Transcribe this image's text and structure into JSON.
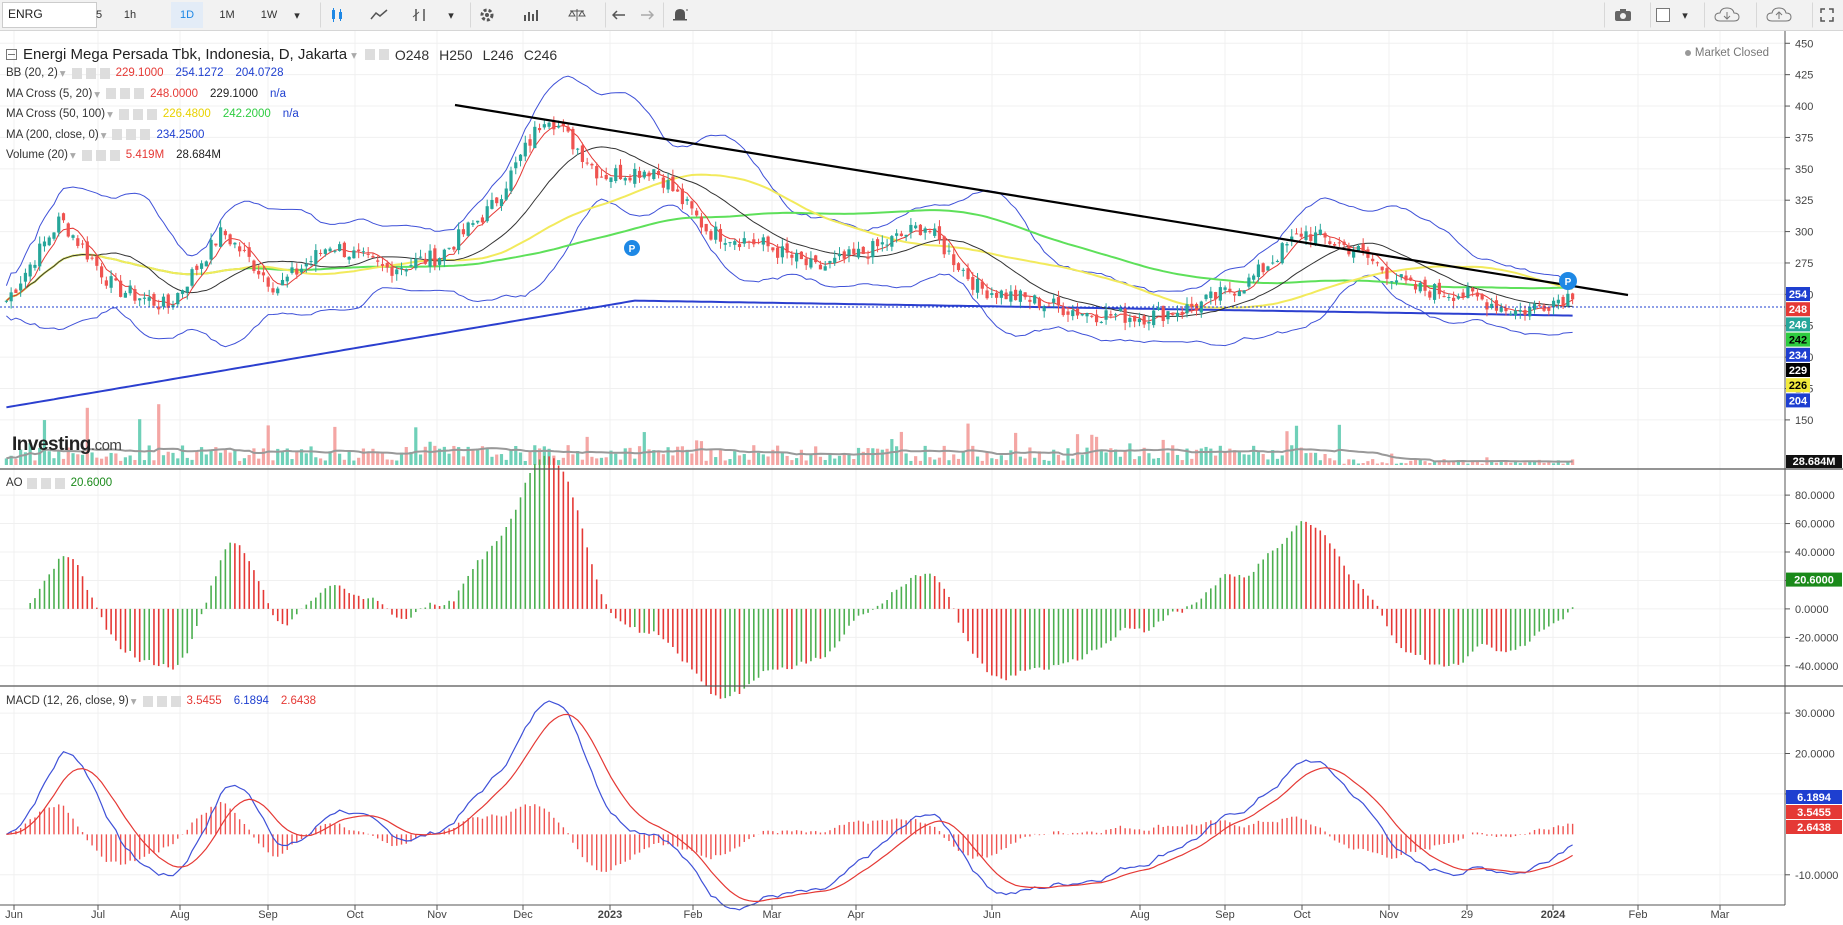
{
  "toolbar": {
    "symbol": "ENRG",
    "intervals": [
      "5",
      "1h",
      "1D",
      "1M",
      "1W"
    ],
    "active_interval": "1D"
  },
  "header": {
    "title": "Energi Mega Persada Tbk, Indonesia, D, Jakarta",
    "ohlc": [
      "O248",
      "H250",
      "L246",
      "C246"
    ],
    "market_status": "Market Closed"
  },
  "indicators": [
    {
      "name": "BB (20, 2)",
      "values": [
        "229.1000",
        "254.1272",
        "204.0728"
      ],
      "colors": [
        "#e53935",
        "#1e3fd0",
        "#1e3fd0"
      ]
    },
    {
      "name": "MA Cross (5, 20)",
      "values": [
        "248.0000",
        "229.1000",
        "n/a"
      ],
      "colors": [
        "#e53935",
        "#222222",
        "#1e3fd0"
      ]
    },
    {
      "name": "MA Cross (50, 100)",
      "values": [
        "226.4800",
        "242.2000",
        "n/a"
      ],
      "colors": [
        "#e8d200",
        "#2ecc40",
        "#1e3fd0"
      ]
    },
    {
      "name": "MA (200, close, 0)",
      "values": [
        "234.2500"
      ],
      "colors": [
        "#1e3fd0"
      ]
    },
    {
      "name": "Volume (20)",
      "values": [
        "5.419M",
        "28.684M"
      ],
      "colors": [
        "#e53935",
        "#222222"
      ]
    }
  ],
  "ao_legend": {
    "name": "AO",
    "values": [
      "20.6000"
    ],
    "colors": [
      "#1a8a1a"
    ]
  },
  "macd_legend": {
    "name": "MACD (12, 26, close, 9)",
    "values": [
      "3.5455",
      "6.1894",
      "2.6438"
    ],
    "colors": [
      "#e53935",
      "#1e3fd0",
      "#e53935"
    ]
  },
  "logo": {
    "brand": "Investing",
    "suffix": ".com"
  },
  "colors": {
    "up": "#26a69a",
    "down": "#ef5350",
    "bb": "#3f51d8",
    "ma200": "#2b3fcf",
    "ma50": "#f2ea5c",
    "ma100": "#5ee05a",
    "ma5": "#e53935",
    "ma20": "#333333",
    "trend": "#000000",
    "grid": "#f0f0f0"
  },
  "chart_data": [
    {
      "type": "candlestick",
      "title": "Energi Mega Persada Tbk, Indonesia, D, Jakarta",
      "x_ticks": [
        "Jun",
        "Jul",
        "Aug",
        "Sep",
        "Oct",
        "Nov",
        "Dec",
        "2023",
        "Feb",
        "Mar",
        "Apr",
        "Jun",
        "Aug",
        "Sep",
        "Oct",
        "Nov",
        "29",
        "2024",
        "Feb",
        "Mar"
      ],
      "y_ticks": [
        150,
        175,
        200,
        225,
        250,
        275,
        300,
        325,
        350,
        375,
        400,
        425,
        450
      ],
      "ylim": [
        130,
        455
      ],
      "close_path": {
        "x": [
          "Jun 2022",
          "Jun 2022",
          "Jul 2022",
          "Jul 2022",
          "Aug 2022",
          "Aug 2022",
          "Sep 2022",
          "Sep 2022",
          "Oct 2022",
          "Oct 2022",
          "Nov 2022",
          "Nov 2022",
          "Dec 2022",
          "Dec 2022",
          "Jan 2023",
          "Jan 2023",
          "Feb 2023",
          "Feb 2023",
          "Mar 2023",
          "Apr 2023",
          "May 2023",
          "Jun 2023",
          "Jul 2023",
          "Aug 2023",
          "Sep 2023",
          "Sep 2023",
          "Oct 2023",
          "Nov 2023",
          "Dec 2023",
          "Jan 2024"
        ],
        "y": [
          245,
          310,
          255,
          240,
          300,
          255,
          290,
          270,
          280,
          320,
          395,
          345,
          350,
          300,
          290,
          270,
          285,
          305,
          255,
          245,
          235,
          232,
          240,
          260,
          300,
          285,
          255,
          250,
          236,
          250
        ]
      },
      "last_labels": [
        {
          "value": "254",
          "bg": "#1e3fd0"
        },
        {
          "value": "248",
          "bg": "#e53935"
        },
        {
          "value": "246",
          "bg": "#26a69a"
        },
        {
          "value": "242",
          "bg": "#2ecc40"
        },
        {
          "value": "234",
          "bg": "#1e3fd0"
        },
        {
          "value": "229",
          "bg": "#000000"
        },
        {
          "value": "226",
          "bg": "#f2ea3c"
        },
        {
          "value": "204",
          "bg": "#1e3fd0"
        }
      ],
      "volume_last": "28.684M"
    },
    {
      "type": "bar",
      "name": "AO",
      "y_ticks": [
        "80.0000",
        "60.0000",
        "40.0000",
        "20.0000",
        "0.0000",
        "-20.0000",
        "-40.0000"
      ],
      "ylim": [
        -50,
        85
      ],
      "last": "20.6000"
    },
    {
      "type": "line",
      "name": "MACD",
      "y_ticks": [
        "30.0000",
        "20.0000",
        "10.0000",
        "-10.0000"
      ],
      "ylim": [
        -15,
        32
      ],
      "last_labels": [
        {
          "value": "6.1894",
          "bg": "#1e3fd0"
        },
        {
          "value": "3.5455",
          "bg": "#e53935"
        },
        {
          "value": "2.6438",
          "bg": "#e53935"
        }
      ]
    }
  ]
}
